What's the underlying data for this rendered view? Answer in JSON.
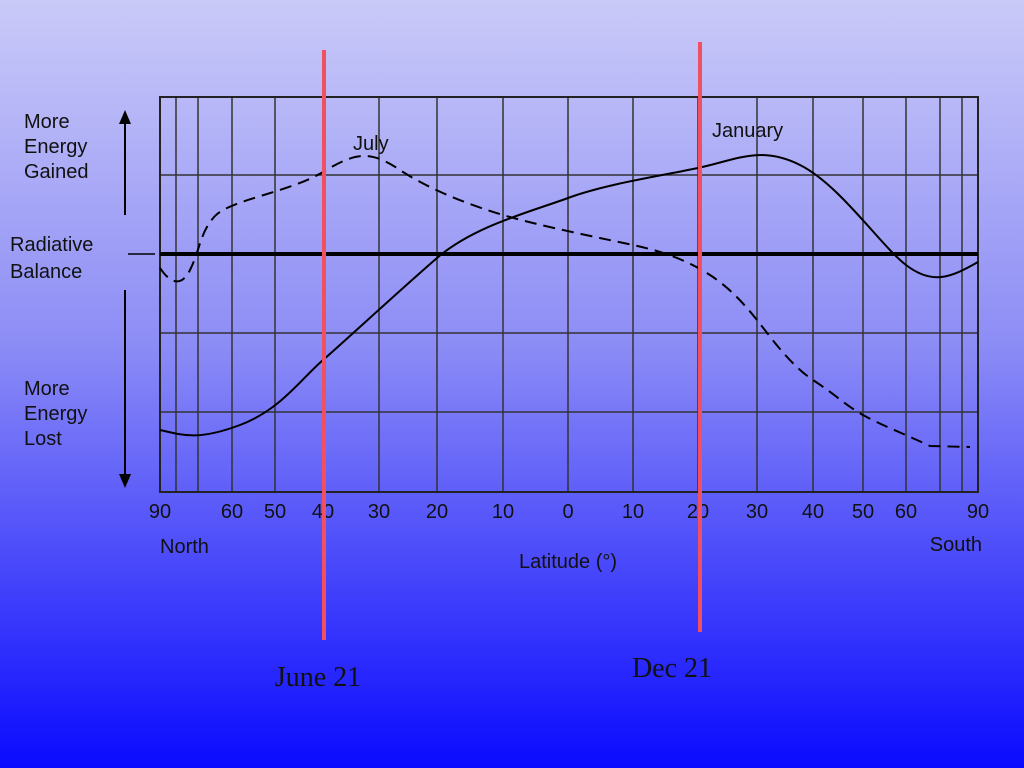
{
  "side_labels": {
    "gained": [
      "More",
      "Energy",
      "Gained"
    ],
    "balance": [
      "Radiative",
      "Balance"
    ],
    "lost": [
      "More",
      "Energy",
      "Lost"
    ]
  },
  "curve_labels": {
    "july": "July",
    "january": "January"
  },
  "x_ticks": [
    "90",
    "60",
    "50",
    "40",
    "30",
    "20",
    "10",
    "0",
    "10",
    "20",
    "30",
    "40",
    "50",
    "60",
    "90"
  ],
  "hemispheres": {
    "north": "North",
    "south": "South"
  },
  "axis_title": "Latitude (°)",
  "markers": {
    "june": "June 21",
    "dec": "Dec 21"
  }
}
